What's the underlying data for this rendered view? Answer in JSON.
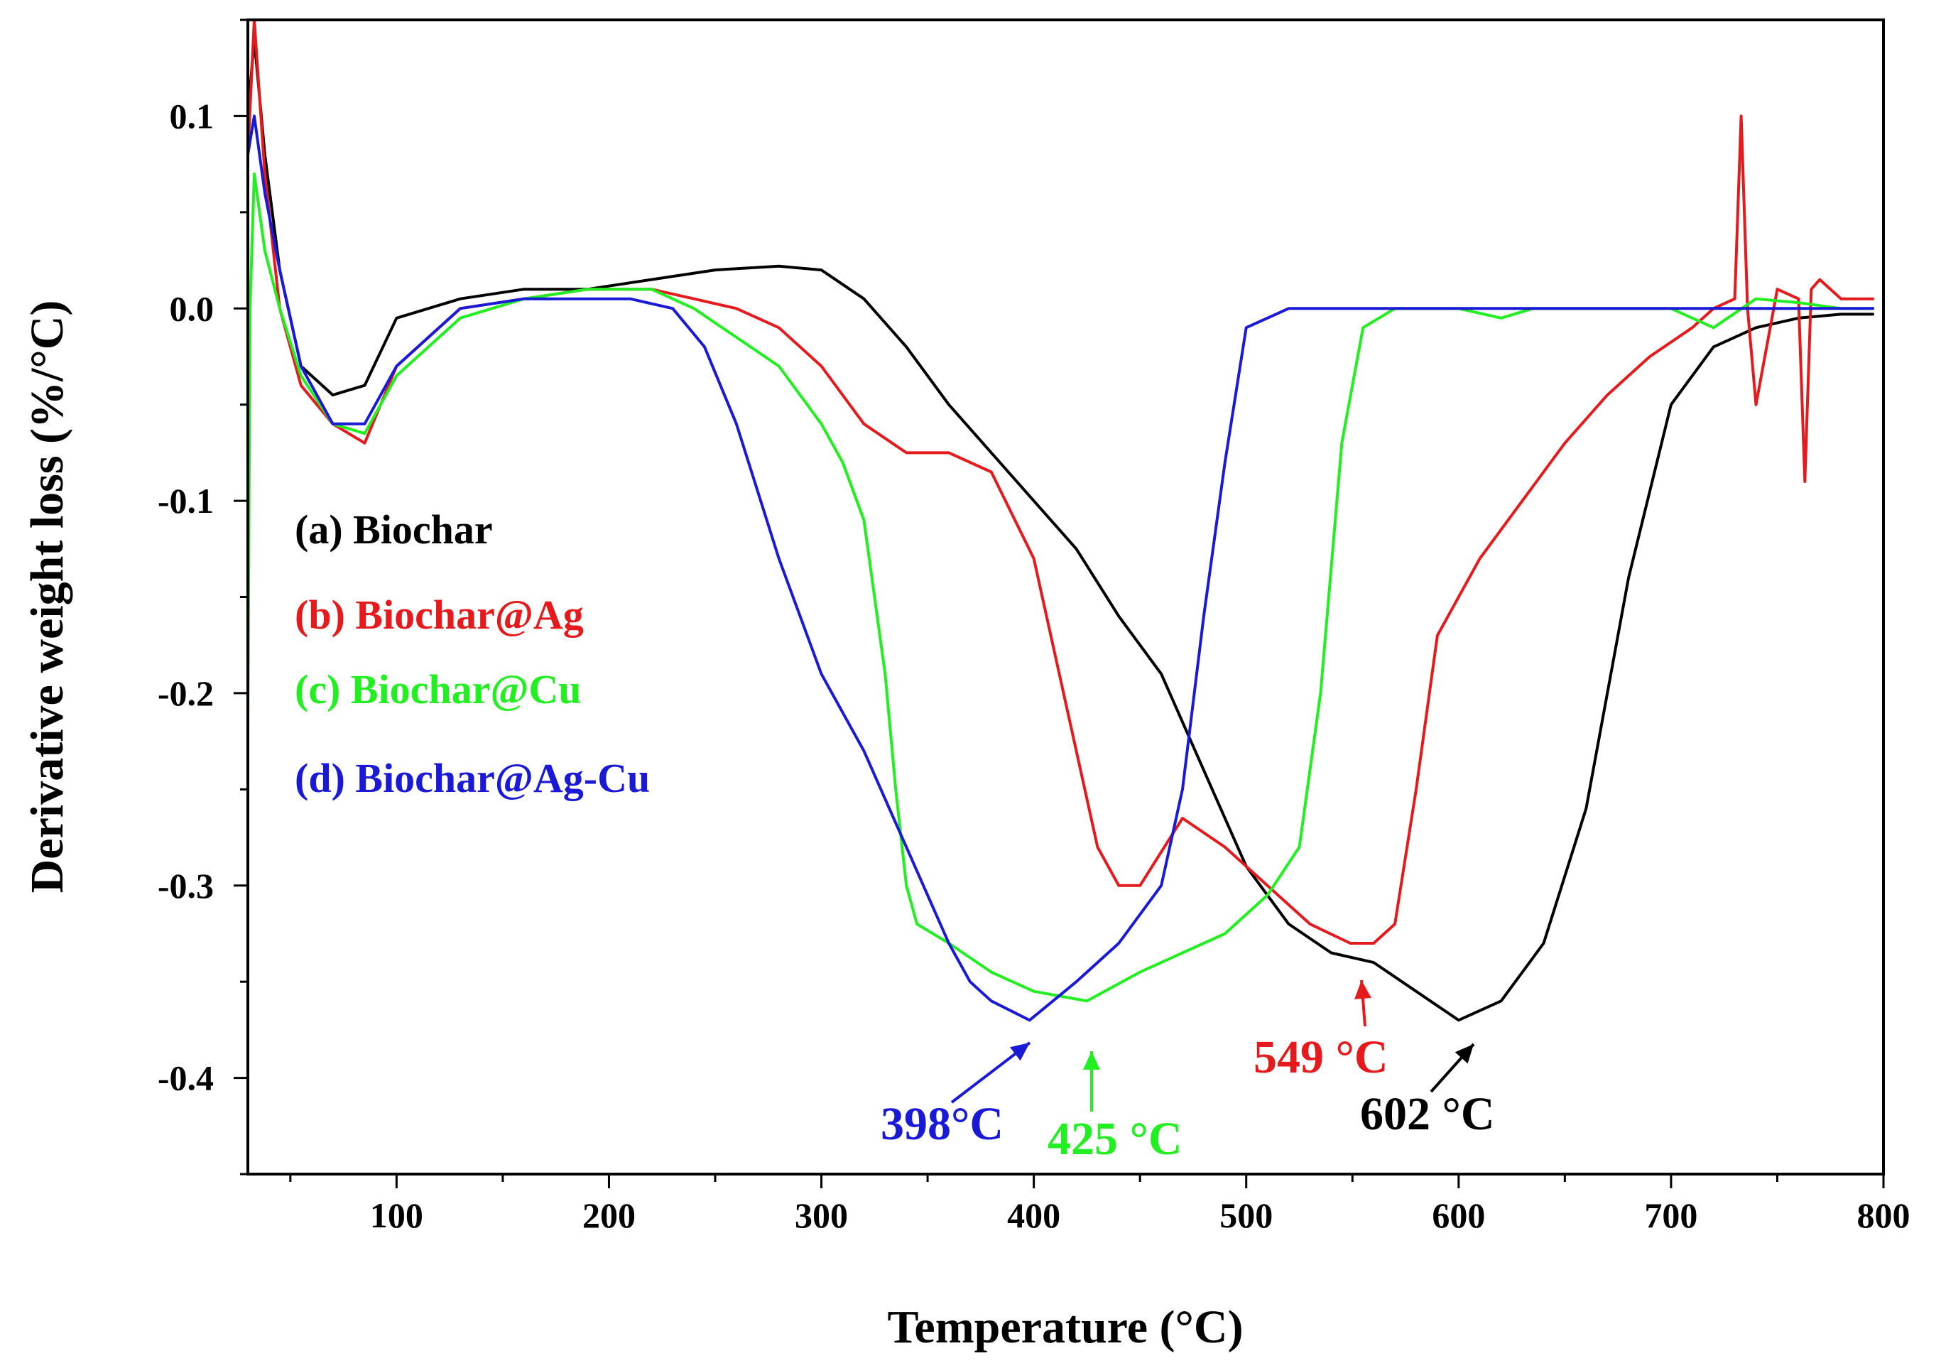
{
  "chart_data": {
    "type": "line",
    "title": "",
    "xlabel": "Temperature (°C)",
    "ylabel": "Derivative weight loss (%/°C)",
    "xlim": [
      30,
      800
    ],
    "ylim": [
      -0.45,
      0.15
    ],
    "xticks": [
      100,
      200,
      300,
      400,
      500,
      600,
      700,
      800
    ],
    "xtick_labels": [
      "100",
      "200",
      "300",
      "400",
      "500",
      "600",
      "700",
      "800"
    ],
    "yticks": [
      0.1,
      0.0,
      -0.1,
      -0.2,
      -0.3,
      -0.4
    ],
    "ytick_labels": [
      "0.1",
      "0.0",
      "-0.1",
      "-0.2",
      "-0.3",
      "-0.4"
    ],
    "grid": false,
    "legend_position": "left-middle",
    "series": [
      {
        "name": "(a) Biochar",
        "color": "#000000",
        "x": [
          30,
          33,
          38,
          45,
          55,
          70,
          85,
          100,
          130,
          160,
          190,
          220,
          250,
          280,
          300,
          320,
          340,
          360,
          380,
          400,
          420,
          440,
          460,
          480,
          500,
          520,
          540,
          560,
          580,
          600,
          610,
          620,
          640,
          660,
          680,
          700,
          720,
          740,
          760,
          780,
          795
        ],
        "y": [
          0.1,
          0.14,
          0.08,
          0.02,
          -0.03,
          -0.045,
          -0.04,
          -0.005,
          0.005,
          0.01,
          0.01,
          0.015,
          0.02,
          0.022,
          0.02,
          0.005,
          -0.02,
          -0.05,
          -0.075,
          -0.1,
          -0.125,
          -0.16,
          -0.19,
          -0.24,
          -0.29,
          -0.32,
          -0.335,
          -0.34,
          -0.355,
          -0.37,
          -0.365,
          -0.36,
          -0.33,
          -0.26,
          -0.14,
          -0.05,
          -0.02,
          -0.01,
          -0.005,
          -0.003,
          -0.003
        ]
      },
      {
        "name": "(b) Biochar@Ag",
        "color": "#e41a1c",
        "x": [
          30,
          33,
          38,
          45,
          55,
          70,
          85,
          100,
          130,
          160,
          190,
          220,
          240,
          260,
          280,
          300,
          320,
          340,
          360,
          380,
          400,
          420,
          430,
          440,
          450,
          470,
          490,
          510,
          530,
          549,
          560,
          570,
          580,
          590,
          610,
          630,
          650,
          670,
          690,
          710,
          720,
          730,
          733,
          736,
          740,
          750,
          760,
          763,
          766,
          770,
          780,
          795
        ],
        "y": [
          0.08,
          0.15,
          0.07,
          0.0,
          -0.04,
          -0.06,
          -0.07,
          -0.03,
          0.0,
          0.005,
          0.01,
          0.01,
          0.005,
          0.0,
          -0.01,
          -0.03,
          -0.06,
          -0.075,
          -0.075,
          -0.085,
          -0.13,
          -0.23,
          -0.28,
          -0.3,
          -0.3,
          -0.265,
          -0.28,
          -0.3,
          -0.32,
          -0.33,
          -0.33,
          -0.32,
          -0.25,
          -0.17,
          -0.13,
          -0.1,
          -0.07,
          -0.045,
          -0.025,
          -0.01,
          0.0,
          0.005,
          0.1,
          0.0,
          -0.05,
          0.01,
          0.005,
          -0.09,
          0.01,
          0.015,
          0.005,
          0.005
        ]
      },
      {
        "name": "(c) Biochar@Cu",
        "color": "#22ee22",
        "x": [
          30,
          31,
          33,
          38,
          45,
          55,
          70,
          85,
          100,
          130,
          160,
          190,
          220,
          240,
          260,
          280,
          300,
          310,
          320,
          330,
          335,
          340,
          345,
          360,
          380,
          400,
          425,
          450,
          470,
          490,
          510,
          525,
          535,
          545,
          555,
          570,
          600,
          620,
          635,
          650,
          680,
          700,
          720,
          740,
          760,
          780,
          795
        ],
        "y": [
          -0.22,
          0.0,
          0.07,
          0.03,
          0.0,
          -0.035,
          -0.06,
          -0.065,
          -0.035,
          -0.005,
          0.005,
          0.01,
          0.01,
          0.0,
          -0.015,
          -0.03,
          -0.06,
          -0.08,
          -0.11,
          -0.19,
          -0.25,
          -0.3,
          -0.32,
          -0.33,
          -0.345,
          -0.355,
          -0.36,
          -0.345,
          -0.335,
          -0.325,
          -0.305,
          -0.28,
          -0.2,
          -0.07,
          -0.01,
          0.0,
          0.0,
          -0.005,
          0.0,
          0.0,
          0.0,
          0.0,
          -0.01,
          0.005,
          0.003,
          0.0,
          0.0
        ]
      },
      {
        "name": "(d) Biochar@Ag-Cu",
        "color": "#1a1ad6",
        "x": [
          30,
          33,
          38,
          45,
          55,
          70,
          85,
          100,
          130,
          160,
          190,
          210,
          230,
          245,
          260,
          280,
          290,
          300,
          320,
          340,
          360,
          370,
          380,
          398,
          420,
          440,
          460,
          470,
          480,
          490,
          500,
          520,
          560,
          600,
          650,
          700,
          730,
          760,
          795
        ],
        "y": [
          0.08,
          0.1,
          0.06,
          0.02,
          -0.03,
          -0.06,
          -0.06,
          -0.03,
          0.0,
          0.005,
          0.005,
          0.005,
          0.0,
          -0.02,
          -0.06,
          -0.13,
          -0.16,
          -0.19,
          -0.23,
          -0.28,
          -0.33,
          -0.35,
          -0.36,
          -0.37,
          -0.35,
          -0.33,
          -0.3,
          -0.25,
          -0.16,
          -0.08,
          -0.01,
          0.0,
          0.0,
          0.0,
          0.0,
          0.0,
          0.0,
          0.0,
          0.0
        ]
      }
    ],
    "annotations": [
      {
        "text": "398°C",
        "color": "#1a1ad6",
        "point_x": 398,
        "point_y": -0.38
      },
      {
        "text": "425 °C",
        "color": "#22ee22",
        "point_x": 425,
        "point_y": -0.37
      },
      {
        "text": "549 °C",
        "color": "#e41a1c",
        "point_x": 549,
        "point_y": -0.345
      },
      {
        "text": "602 °C",
        "color": "#000000",
        "point_x": 602,
        "point_y": -0.38
      }
    ]
  }
}
